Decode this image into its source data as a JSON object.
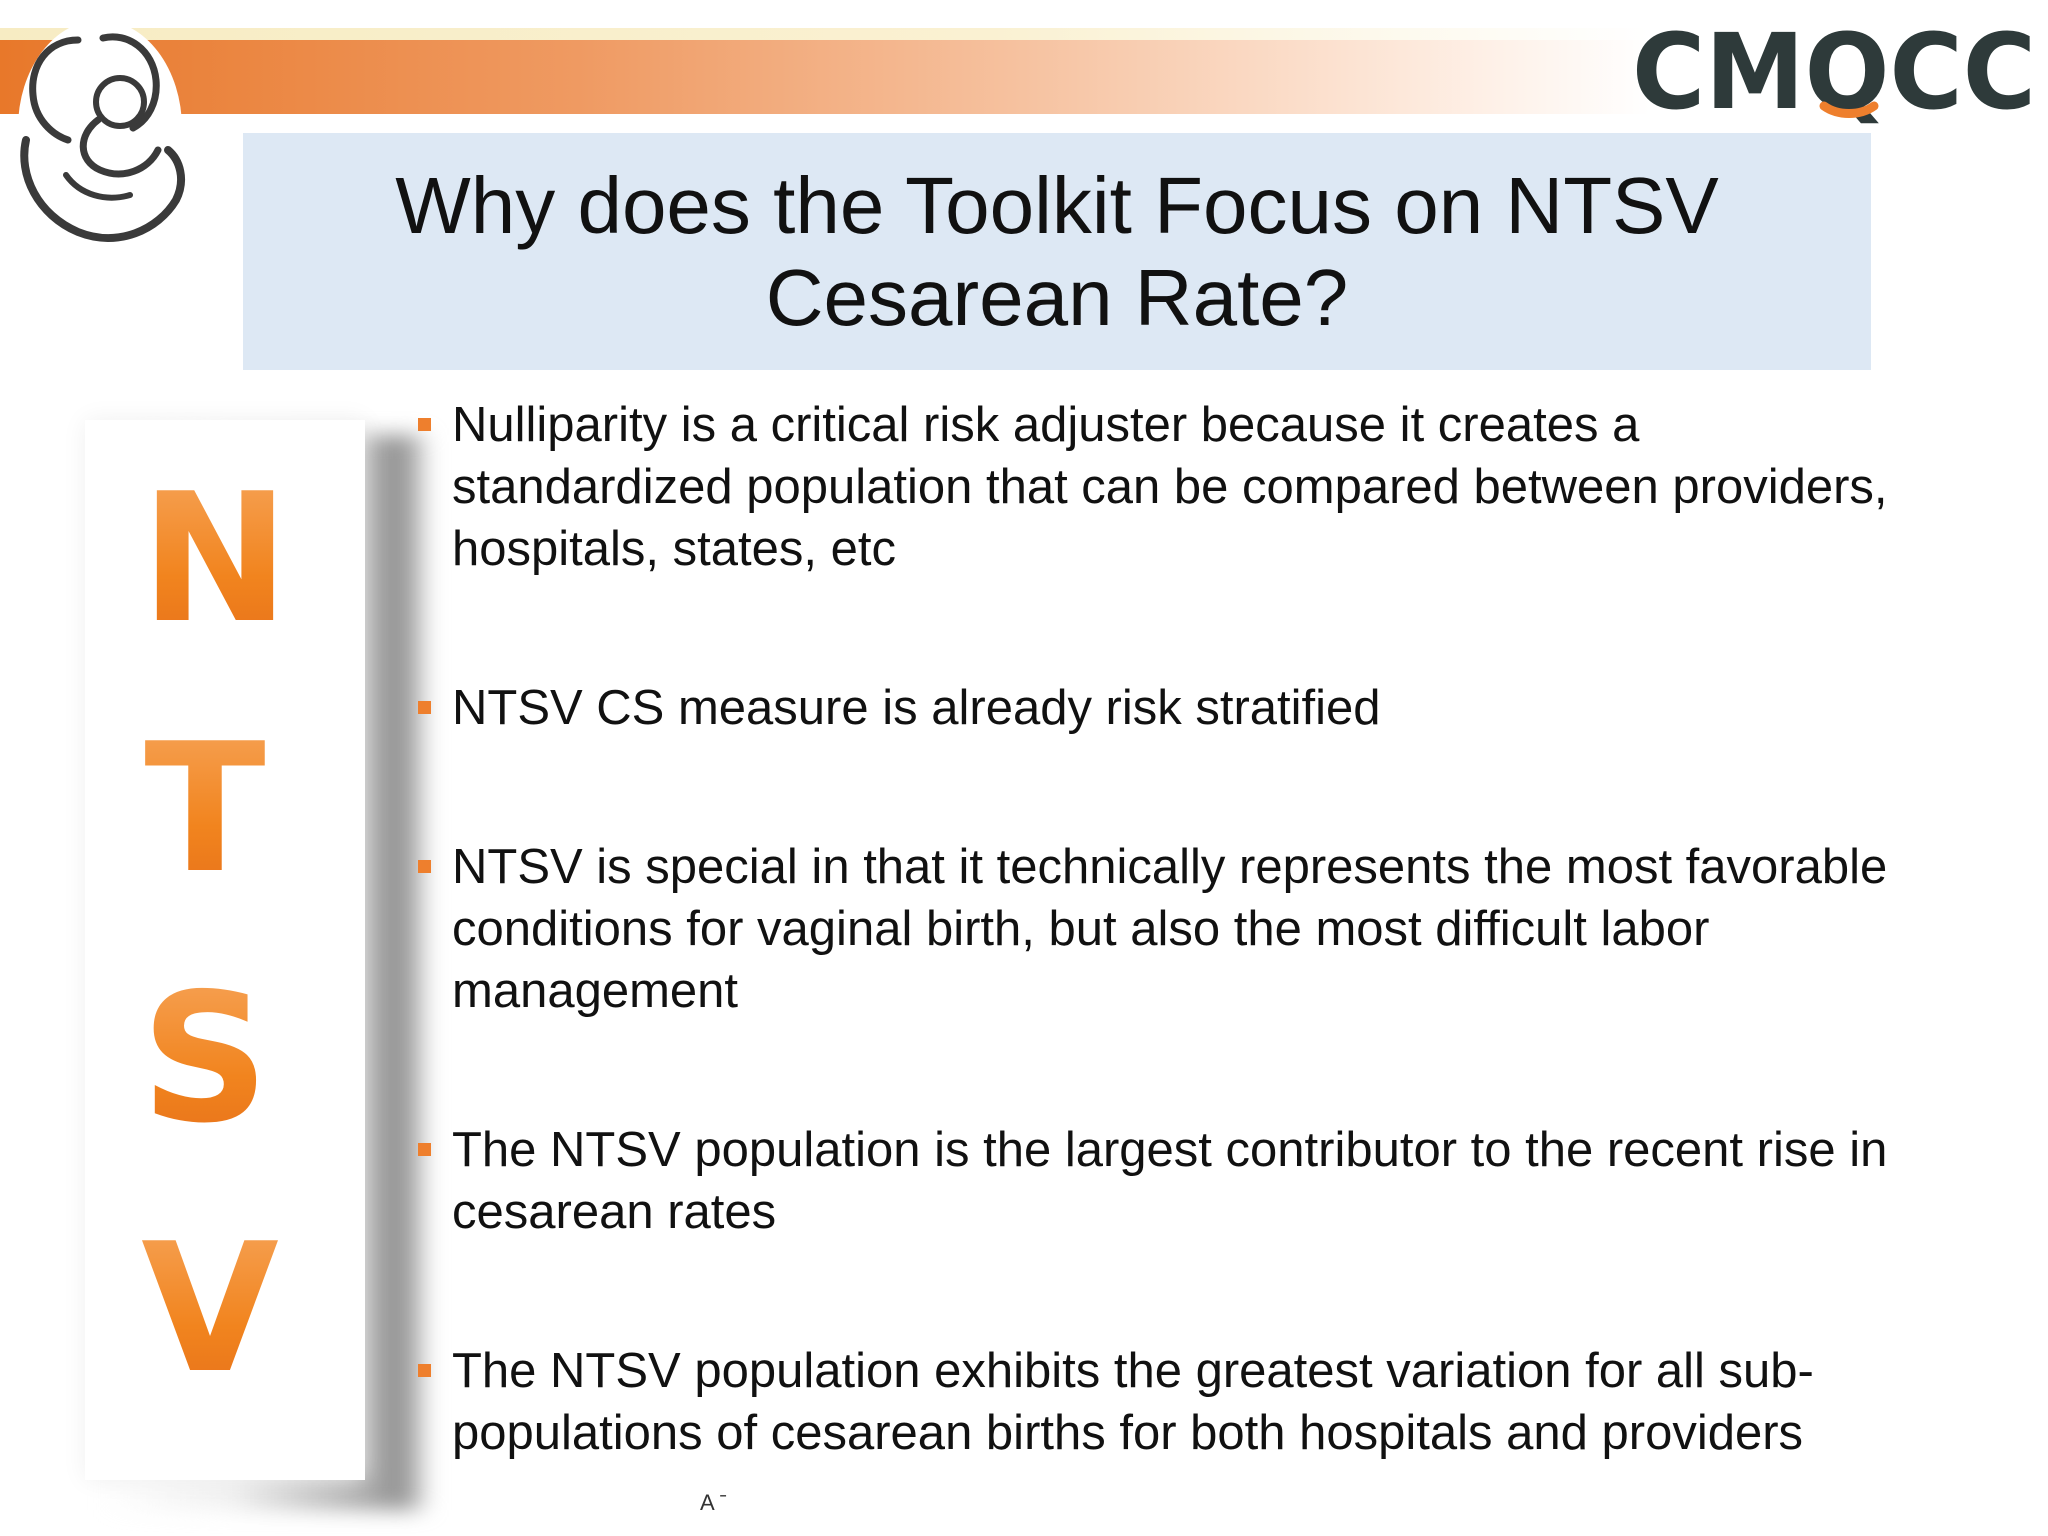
{
  "header": {
    "brand": "CMQCC",
    "brand_colors": {
      "dark": "#2e3a3a",
      "accent": "#ee7f2d"
    },
    "logo_icon": "mother-and-baby-icon"
  },
  "title": "Why does the Toolkit Focus on NTSV Cesarean Rate?",
  "side_letters": [
    "N",
    "T",
    "S",
    "V"
  ],
  "bullets": [
    "Nulliparity is a critical risk adjuster because it creates a standardized population that can be compared between providers, hospitals, states, etc",
    "NTSV CS measure is already risk stratified",
    "NTSV is special in that it technically represents the most favorable conditions for vaginal birth, but also the most difficult labor management",
    "The NTSV population is the largest contributor to the recent rise in cesarean rates",
    "The NTSV population exhibits the greatest variation for all sub-populations of cesarean births for both hospitals and providers"
  ],
  "footer_mark": "A ˉ",
  "colors": {
    "accent_orange": "#ee7f2d",
    "title_box": "#dde8f4"
  }
}
